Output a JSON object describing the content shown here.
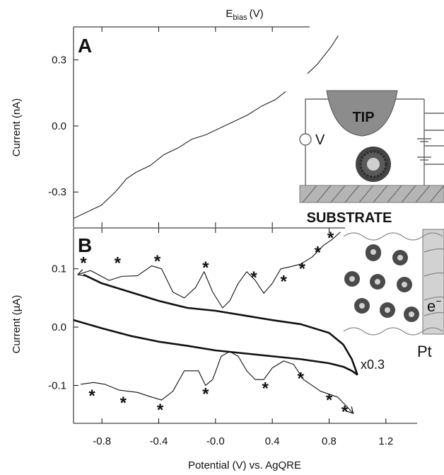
{
  "chart_data": [
    {
      "panel": "A",
      "type": "line",
      "title": "",
      "top_axis_label": "E",
      "top_axis_label_subscript": "bias",
      "top_axis_label_unit": "(V)",
      "ylabel": "Current (nA)",
      "ylim": [
        -0.46,
        0.45
      ],
      "yticks": [
        "0.3",
        "0.0",
        "-0.3"
      ],
      "ytick_values": [
        0.3,
        0.0,
        -0.3
      ],
      "xlim": [
        -1.0,
        1.0
      ],
      "series": [
        {
          "x": [
            -1.0,
            -0.9,
            -0.8,
            -0.7,
            -0.62,
            -0.55,
            -0.45,
            -0.35,
            -0.25,
            -0.15,
            -0.05,
            0.05,
            0.15,
            0.25,
            0.35,
            0.45,
            0.55,
            0.65,
            0.75,
            0.85,
            0.9
          ],
          "y": [
            -0.42,
            -0.39,
            -0.36,
            -0.3,
            -0.24,
            -0.21,
            -0.18,
            -0.13,
            -0.1,
            -0.06,
            -0.04,
            -0.01,
            0.02,
            0.05,
            0.09,
            0.12,
            0.17,
            0.22,
            0.28,
            0.36,
            0.41
          ]
        }
      ],
      "inset": {
        "tip_label": "TIP",
        "voltage_label": "V",
        "substrate_label": "SUBSTRATE"
      }
    },
    {
      "panel": "B",
      "type": "line",
      "ylabel": "Current (µA)",
      "xlabel": "Potential (V) vs. AgQRE",
      "ylim": [
        -0.165,
        0.17
      ],
      "xlim": [
        -1.0,
        1.42
      ],
      "yticks": [
        "0.1",
        "0.0",
        "-0.1"
      ],
      "ytick_values": [
        0.1,
        0.0,
        -0.1
      ],
      "xticks": [
        "-0.8",
        "-0.4",
        "-0.0",
        "0.4",
        "0.8",
        "1.2"
      ],
      "xtick_values": [
        -0.8,
        -0.4,
        0.0,
        0.4,
        0.8,
        1.2
      ],
      "series": [
        {
          "style": "thin",
          "x": [
            -0.97,
            -0.88,
            -0.75,
            -0.66,
            -0.55,
            -0.45,
            -0.38,
            -0.3,
            -0.22,
            -0.14,
            -0.08,
            -0.02,
            0.05,
            0.1,
            0.16,
            0.22,
            0.28,
            0.34,
            0.4,
            0.46,
            0.52,
            0.6,
            0.68,
            0.76,
            0.82,
            0.88
          ],
          "y": [
            0.09,
            0.097,
            0.08,
            0.087,
            0.088,
            0.105,
            0.1,
            0.06,
            0.05,
            0.068,
            0.095,
            0.06,
            0.033,
            0.045,
            0.075,
            0.095,
            0.08,
            0.058,
            0.075,
            0.1,
            0.103,
            0.108,
            0.12,
            0.14,
            0.15,
            0.163
          ]
        },
        {
          "style": "thin",
          "x": [
            -0.95,
            -0.86,
            -0.78,
            -0.68,
            -0.55,
            -0.45,
            -0.38,
            -0.3,
            -0.22,
            -0.12,
            -0.07,
            -0.02,
            0.04,
            0.1,
            0.16,
            0.22,
            0.28,
            0.34,
            0.4,
            0.48,
            0.55,
            0.62,
            0.68,
            0.74,
            0.8,
            0.86,
            0.92,
            0.97
          ],
          "y": [
            -0.098,
            -0.095,
            -0.098,
            -0.108,
            -0.112,
            -0.12,
            -0.125,
            -0.11,
            -0.075,
            -0.075,
            -0.1,
            -0.09,
            -0.05,
            -0.042,
            -0.05,
            -0.075,
            -0.09,
            -0.09,
            -0.07,
            -0.058,
            -0.064,
            -0.09,
            -0.1,
            -0.11,
            -0.115,
            -0.12,
            -0.135,
            -0.148
          ]
        },
        {
          "style": "thick",
          "x": [
            -0.93,
            -0.8,
            -0.6,
            -0.4,
            -0.2,
            0.0,
            0.2,
            0.4,
            0.6,
            0.8,
            0.9,
            0.96,
            1.0
          ],
          "y": [
            0.09,
            0.075,
            0.06,
            0.045,
            0.033,
            0.028,
            0.02,
            0.012,
            0.005,
            -0.01,
            -0.03,
            -0.055,
            -0.082
          ]
        },
        {
          "style": "thick",
          "x": [
            -1.0,
            -0.8,
            -0.6,
            -0.4,
            -0.2,
            0.0,
            0.2,
            0.4,
            0.6,
            0.8,
            0.9,
            0.96,
            1.0
          ],
          "y": [
            0.012,
            -0.002,
            -0.015,
            -0.025,
            -0.032,
            -0.04,
            -0.045,
            -0.05,
            -0.055,
            -0.062,
            -0.068,
            -0.075,
            -0.082
          ]
        }
      ],
      "peak_markers": [
        {
          "x": -0.93,
          "y": 0.115
        },
        {
          "x": -0.69,
          "y": 0.115
        },
        {
          "x": -0.41,
          "y": 0.118
        },
        {
          "x": -0.07,
          "y": 0.107
        },
        {
          "x": 0.27,
          "y": 0.09
        },
        {
          "x": 0.48,
          "y": 0.083
        },
        {
          "x": 0.61,
          "y": 0.105
        },
        {
          "x": 0.72,
          "y": 0.133
        },
        {
          "x": 0.81,
          "y": 0.158
        },
        {
          "x": -0.87,
          "y": -0.113
        },
        {
          "x": -0.65,
          "y": -0.125
        },
        {
          "x": -0.39,
          "y": -0.137
        },
        {
          "x": -0.07,
          "y": -0.11
        },
        {
          "x": 0.35,
          "y": -0.1
        },
        {
          "x": 0.6,
          "y": -0.083
        },
        {
          "x": 0.8,
          "y": -0.12
        },
        {
          "x": 0.91,
          "y": -0.14
        }
      ],
      "scale_note": "x0.3",
      "inset": {
        "electron_label": "e",
        "electrode_label": "Pt"
      }
    }
  ]
}
